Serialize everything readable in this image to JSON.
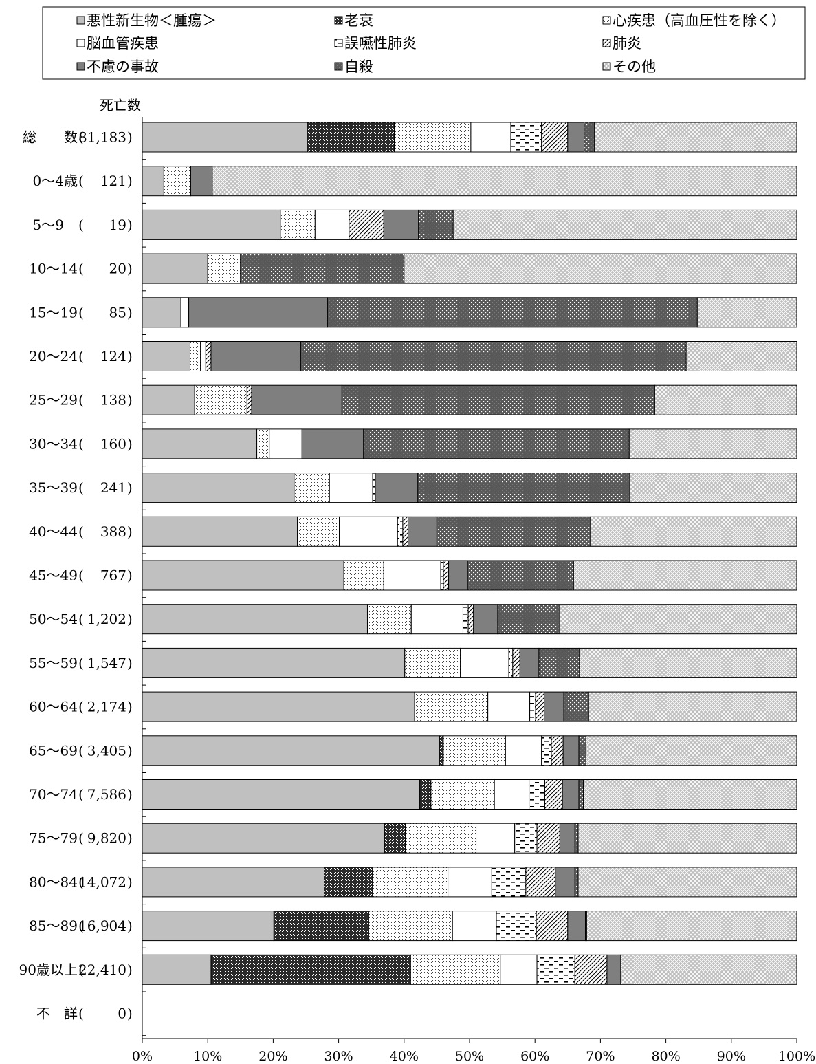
{
  "chart_data": {
    "type": "bar",
    "orientation": "horizontal",
    "stacked": true,
    "normalized": true,
    "axis_header": "死亡数",
    "xlim": [
      0,
      100
    ],
    "x_ticks": [
      "0%",
      "10%",
      "20%",
      "30%",
      "40%",
      "50%",
      "60%",
      "70%",
      "80%",
      "90%",
      "100%"
    ],
    "legend_position": "top",
    "grid": false,
    "categories": [
      {
        "label": "総　　数",
        "count": "81,183"
      },
      {
        "label": "0～4歳",
        "count": "121"
      },
      {
        "label": "5～9　",
        "count": "19"
      },
      {
        "label": "10～14",
        "count": "20"
      },
      {
        "label": "15～19",
        "count": "85"
      },
      {
        "label": "20～24",
        "count": "124"
      },
      {
        "label": "25～29",
        "count": "138"
      },
      {
        "label": "30～34",
        "count": "160"
      },
      {
        "label": "35～39",
        "count": "241"
      },
      {
        "label": "40～44",
        "count": "388"
      },
      {
        "label": "45～49",
        "count": "767"
      },
      {
        "label": "50～54",
        "count": "1,202"
      },
      {
        "label": "55～59",
        "count": "1,547"
      },
      {
        "label": "60～64",
        "count": "2,174"
      },
      {
        "label": "65～69",
        "count": "3,405"
      },
      {
        "label": "70～74",
        "count": "7,586"
      },
      {
        "label": "75～79",
        "count": "9,820"
      },
      {
        "label": "80～84",
        "count": "14,072"
      },
      {
        "label": "85～89",
        "count": "16,904"
      },
      {
        "label": "90歳以上",
        "count": "22,410"
      },
      {
        "label": "不　詳",
        "count": "0"
      }
    ],
    "series": [
      {
        "name": "悪性新生物＜腫瘍＞",
        "pattern": "solid-gray",
        "values": [
          25.2,
          3.3,
          21.1,
          10.0,
          5.9,
          7.3,
          8.0,
          17.5,
          23.2,
          23.7,
          30.8,
          34.4,
          40.1,
          41.6,
          45.4,
          42.4,
          37.0,
          27.8,
          20.1,
          10.5,
          0
        ]
      },
      {
        "name": "老衰",
        "pattern": "dense-dark",
        "values": [
          13.3,
          0,
          0,
          0,
          0,
          0,
          0,
          0,
          0,
          0,
          0,
          0,
          0,
          0,
          0.6,
          1.7,
          3.2,
          7.4,
          14.5,
          30.5,
          0
        ]
      },
      {
        "name": "心疾患（高血圧性を除く）",
        "pattern": "fine-dots",
        "values": [
          11.7,
          4.1,
          5.3,
          5.0,
          0,
          1.6,
          8.0,
          1.9,
          5.4,
          6.4,
          6.1,
          6.7,
          8.5,
          11.2,
          9.5,
          9.7,
          10.8,
          11.5,
          12.8,
          13.7,
          0
        ]
      },
      {
        "name": "脳血管疾患",
        "pattern": "white",
        "values": [
          6.1,
          0,
          5.2,
          0,
          1.2,
          0.8,
          0,
          5.0,
          6.6,
          8.9,
          8.7,
          7.9,
          7.4,
          6.4,
          5.5,
          5.3,
          5.9,
          6.7,
          6.7,
          5.6,
          0
        ]
      },
      {
        "name": "誤嚥性肺炎",
        "pattern": "dashes",
        "values": [
          4.7,
          0,
          0,
          0,
          0,
          0,
          0,
          0,
          0.4,
          0.8,
          0.4,
          0.8,
          0.6,
          0.9,
          1.5,
          2.4,
          3.4,
          5.2,
          6.1,
          5.8,
          0
        ]
      },
      {
        "name": "肺炎",
        "pattern": "diagonal",
        "values": [
          4.0,
          0,
          5.3,
          0,
          0,
          0.8,
          0.7,
          0,
          0,
          0.8,
          0.8,
          0.8,
          1.1,
          1.3,
          1.8,
          2.7,
          3.5,
          4.5,
          4.8,
          4.9,
          0
        ]
      },
      {
        "name": "不慮の事故",
        "pattern": "solid-dark",
        "values": [
          2.5,
          3.3,
          5.3,
          0,
          21.2,
          13.7,
          13.8,
          9.4,
          6.5,
          4.4,
          2.9,
          3.7,
          2.9,
          3.0,
          2.4,
          2.5,
          2.3,
          3.0,
          2.7,
          2.1,
          0
        ]
      },
      {
        "name": "自殺",
        "pattern": "dark-dots",
        "values": [
          1.6,
          0,
          5.3,
          25.0,
          56.5,
          58.9,
          47.8,
          40.6,
          32.4,
          23.5,
          16.2,
          9.5,
          6.2,
          3.8,
          1.1,
          0.7,
          0.5,
          0.5,
          0.2,
          0,
          0
        ]
      },
      {
        "name": "その他",
        "pattern": "crosshatch",
        "values": [
          30.9,
          89.3,
          52.5,
          60.0,
          15.2,
          16.9,
          21.7,
          25.6,
          25.5,
          31.5,
          34.1,
          36.2,
          33.2,
          31.8,
          32.2,
          32.6,
          33.4,
          33.4,
          32.1,
          26.9,
          0
        ]
      }
    ]
  }
}
